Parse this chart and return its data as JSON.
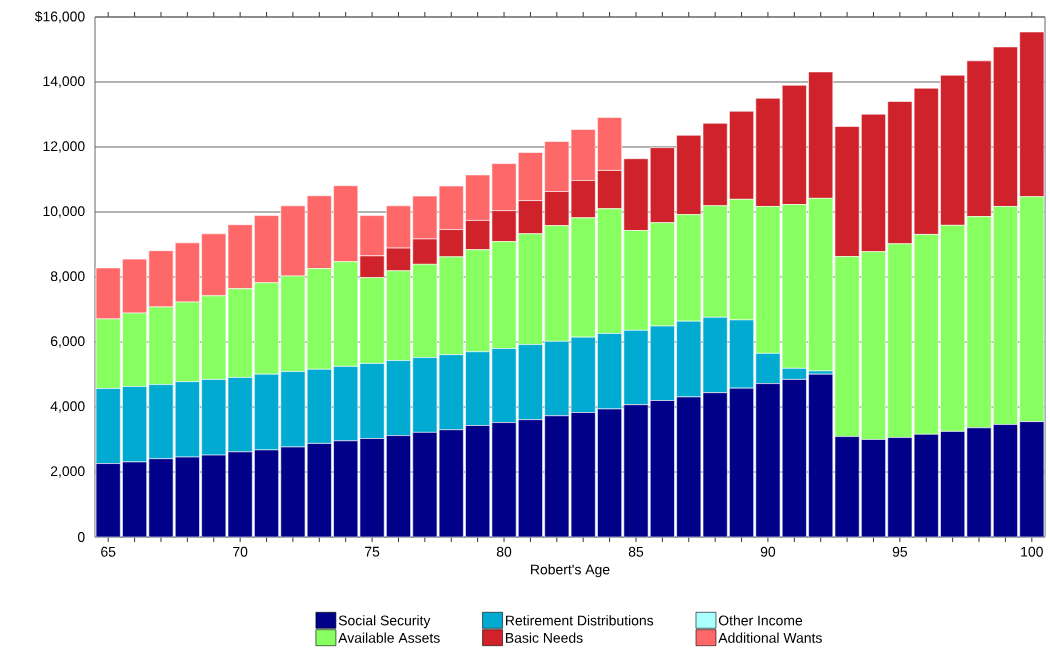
{
  "chart_data": {
    "type": "bar",
    "stacked": true,
    "xlabel": "Robert's Age",
    "categories": [
      "65",
      null,
      null,
      null,
      null,
      "70",
      null,
      null,
      null,
      null,
      "75",
      null,
      null,
      null,
      null,
      "80",
      null,
      null,
      null,
      null,
      "85",
      null,
      null,
      null,
      null,
      "90",
      null,
      null,
      null,
      null,
      "95",
      null,
      null,
      null,
      null,
      "100"
    ],
    "series": [
      {
        "name": "Social Security",
        "color": "#000088",
        "values": [
          2260,
          2310,
          2410,
          2460,
          2520,
          2620,
          2680,
          2770,
          2880,
          2960,
          3030,
          3120,
          3220,
          3300,
          3430,
          3520,
          3610,
          3730,
          3830,
          3940,
          4070,
          4200,
          4310,
          4440,
          4580,
          4720,
          4850,
          5010,
          3090,
          3000,
          3060,
          3160,
          3250,
          3360,
          3460,
          3550
        ]
      },
      {
        "name": "Retirement Distributions",
        "color": "#00aad0",
        "values": [
          2310,
          2320,
          2280,
          2320,
          2330,
          2290,
          2330,
          2320,
          2280,
          2290,
          2310,
          2310,
          2300,
          2310,
          2270,
          2280,
          2310,
          2290,
          2320,
          2320,
          2290,
          2290,
          2330,
          2320,
          2100,
          930,
          340,
          100,
          0,
          0,
          0,
          0,
          0,
          0,
          0,
          0
        ]
      },
      {
        "name": "Other Income",
        "color": "#aaffff",
        "values": [
          0,
          0,
          0,
          0,
          0,
          0,
          0,
          0,
          0,
          0,
          0,
          0,
          0,
          0,
          0,
          0,
          0,
          0,
          0,
          0,
          0,
          0,
          0,
          0,
          0,
          0,
          0,
          0,
          0,
          0,
          0,
          0,
          0,
          0,
          0,
          0
        ]
      },
      {
        "name": "Available Assets",
        "color": "#88ff60",
        "values": [
          2140,
          2260,
          2390,
          2450,
          2570,
          2730,
          2810,
          2940,
          3100,
          3220,
          2640,
          2760,
          2870,
          3010,
          3140,
          3290,
          3410,
          3560,
          3670,
          3840,
          3070,
          3180,
          3280,
          3430,
          3710,
          4520,
          5040,
          5310,
          5540,
          5780,
          5960,
          6150,
          6340,
          6500,
          6710,
          6920
        ]
      },
      {
        "name": "Basic Needs",
        "color": "#d0222a",
        "values": [
          0,
          0,
          0,
          0,
          0,
          0,
          0,
          0,
          0,
          0,
          670,
          700,
          780,
          840,
          900,
          950,
          1020,
          1050,
          1150,
          1180,
          2210,
          2310,
          2440,
          2540,
          2710,
          3330,
          3670,
          3890,
          4000,
          4230,
          4380,
          4500,
          4620,
          4790,
          4910,
          5070
        ]
      },
      {
        "name": "Additional Wants",
        "color": "#ff6868",
        "values": [
          1570,
          1660,
          1730,
          1820,
          1910,
          1970,
          2070,
          2160,
          2240,
          2340,
          1240,
          1300,
          1320,
          1340,
          1400,
          1450,
          1480,
          1540,
          1570,
          1630,
          0,
          0,
          0,
          0,
          0,
          0,
          0,
          0,
          0,
          0,
          0,
          0,
          0,
          0,
          0,
          0
        ]
      }
    ],
    "ylim": [
      0,
      16000
    ],
    "yticks": [
      0,
      {
        "value": 2000,
        "label": "2,000"
      },
      {
        "value": 4000,
        "label": "4,000"
      },
      {
        "value": 6000,
        "label": "6,000"
      },
      {
        "value": 8000,
        "label": "8,000"
      },
      {
        "value": 10000,
        "label": "10,000"
      },
      {
        "value": 12000,
        "label": "12,000"
      },
      {
        "value": 14000,
        "label": "14,000"
      },
      {
        "value": 16000,
        "label": "$16,000"
      }
    ],
    "grid": "y",
    "legend": "bottom"
  }
}
